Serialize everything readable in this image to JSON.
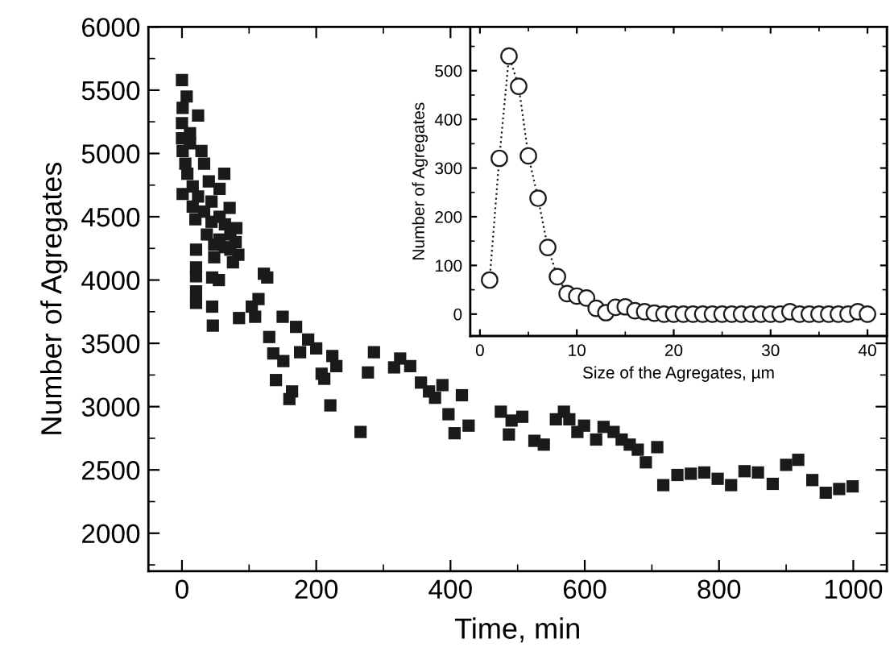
{
  "chart_data": [
    {
      "type": "scatter",
      "xlabel": "Time, min",
      "ylabel": "Number of Agregates",
      "marker": "square",
      "legend": false,
      "xlim": [
        -50,
        1050
      ],
      "ylim": [
        1700,
        6000
      ],
      "xticks": [
        0,
        200,
        400,
        600,
        800,
        1000
      ],
      "yticks": [
        2000,
        2500,
        3000,
        3500,
        4000,
        4500,
        5000,
        5500,
        6000
      ],
      "series": [
        {
          "color": "#1a1a1a",
          "x": [
            0,
            7,
            1,
            24,
            0,
            12,
            1,
            29,
            5,
            33,
            8,
            40,
            63,
            16,
            56,
            1,
            24,
            44,
            71,
            16,
            33,
            20,
            56,
            44,
            64,
            81,
            37,
            72,
            56,
            80,
            72,
            48,
            64,
            84,
            76,
            48,
            21,
            21,
            21,
            21,
            21,
            46,
            45,
            45,
            55,
            0,
            12,
            122,
            127,
            114,
            104,
            109,
            85,
            150,
            170,
            130,
            136,
            151,
            140,
            188,
            200,
            176,
            224,
            230,
            208,
            212,
            164,
            160,
            221,
            286,
            277,
            266,
            316,
            325,
            340,
            356,
            368,
            377,
            388,
            417,
            397,
            406,
            427,
            475,
            491,
            507,
            487,
            525,
            539,
            557,
            569,
            577,
            589,
            599,
            617,
            628,
            643,
            655,
            667,
            679,
            691,
            708,
            717,
            738,
            758,
            778,
            798,
            818,
            838,
            858,
            880,
            900,
            918,
            939,
            959,
            979,
            999
          ],
          "values": [
            5580,
            5450,
            5360,
            5300,
            5240,
            5160,
            5020,
            5020,
            4920,
            4920,
            4840,
            4780,
            4840,
            4740,
            4720,
            4680,
            4660,
            4620,
            4570,
            4580,
            4540,
            4480,
            4500,
            4460,
            4440,
            4410,
            4360,
            4360,
            4320,
            4300,
            4240,
            4280,
            4260,
            4200,
            4140,
            4180,
            4240,
            4100,
            4030,
            3910,
            3820,
            3640,
            3790,
            4020,
            4000,
            5120,
            5080,
            4050,
            4020,
            3850,
            3790,
            3710,
            3700,
            3710,
            3630,
            3550,
            3420,
            3360,
            3210,
            3530,
            3460,
            3430,
            3400,
            3320,
            3260,
            3220,
            3120,
            3060,
            3010,
            3430,
            3270,
            2800,
            3310,
            3380,
            3320,
            3190,
            3120,
            3070,
            3170,
            3090,
            2940,
            2790,
            2850,
            2960,
            2890,
            2920,
            2780,
            2730,
            2700,
            2900,
            2960,
            2900,
            2800,
            2850,
            2740,
            2840,
            2800,
            2740,
            2700,
            2660,
            2560,
            2680,
            2380,
            2460,
            2470,
            2480,
            2430,
            2380,
            2490,
            2480,
            2390,
            2540,
            2580,
            2420,
            2320,
            2350,
            2370
          ]
        }
      ]
    },
    {
      "type": "line",
      "xlabel": "Size of the Agregates, µm",
      "ylabel": "Number of Agregates",
      "marker": "circle",
      "line_style": "dotted",
      "legend": false,
      "xlim": [
        -1,
        42
      ],
      "ylim": [
        -45,
        590
      ],
      "xticks": [
        0,
        10,
        20,
        30,
        40
      ],
      "yticks": [
        0,
        100,
        200,
        300,
        400,
        500
      ],
      "series": [
        {
          "color": "#1a1a1a",
          "x": [
            1,
            2,
            3,
            4,
            5,
            6,
            7,
            8,
            9,
            10,
            11,
            12,
            13,
            14,
            15,
            16,
            17,
            18,
            19,
            20,
            21,
            22,
            23,
            24,
            25,
            26,
            27,
            28,
            29,
            30,
            31,
            32,
            33,
            34,
            35,
            36,
            37,
            38,
            39,
            40
          ],
          "values": [
            70,
            320,
            530,
            468,
            325,
            238,
            137,
            77,
            42,
            37,
            33,
            12,
            3,
            14,
            15,
            7,
            5,
            2,
            0,
            0,
            0,
            0,
            0,
            0,
            0,
            0,
            0,
            0,
            0,
            0,
            0,
            5,
            0,
            0,
            0,
            0,
            0,
            0,
            5,
            0
          ]
        }
      ]
    }
  ]
}
